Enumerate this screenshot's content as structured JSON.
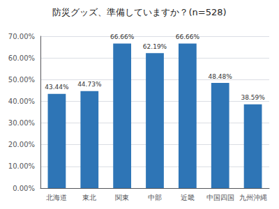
{
  "chart_data": {
    "type": "bar",
    "title": "防災グッズ、準備していますか？(n=528)",
    "categories": [
      "北海道",
      "東北",
      "関東",
      "中部",
      "近畿",
      "中国四国",
      "九州沖縄"
    ],
    "values": [
      43.44,
      44.73,
      66.66,
      62.19,
      66.66,
      48.48,
      38.59
    ],
    "value_labels": [
      "43.44%",
      "44.73%",
      "66.66%",
      "62.19%",
      "66.66%",
      "48.48%",
      "38.59%"
    ],
    "data_labels": true,
    "color": "#2E75B6",
    "ylim": [
      0,
      70
    ],
    "yticks": [
      {
        "value": 0,
        "label": "0.00%"
      },
      {
        "value": 10,
        "label": "10.00%"
      },
      {
        "value": 20,
        "label": "20.00%"
      },
      {
        "value": 30,
        "label": "30.00%"
      },
      {
        "value": 40,
        "label": "40.00%"
      },
      {
        "value": 50,
        "label": "50.00%"
      },
      {
        "value": 60,
        "label": "60.00%"
      },
      {
        "value": 70,
        "label": "70.00%"
      }
    ],
    "grid": true
  }
}
